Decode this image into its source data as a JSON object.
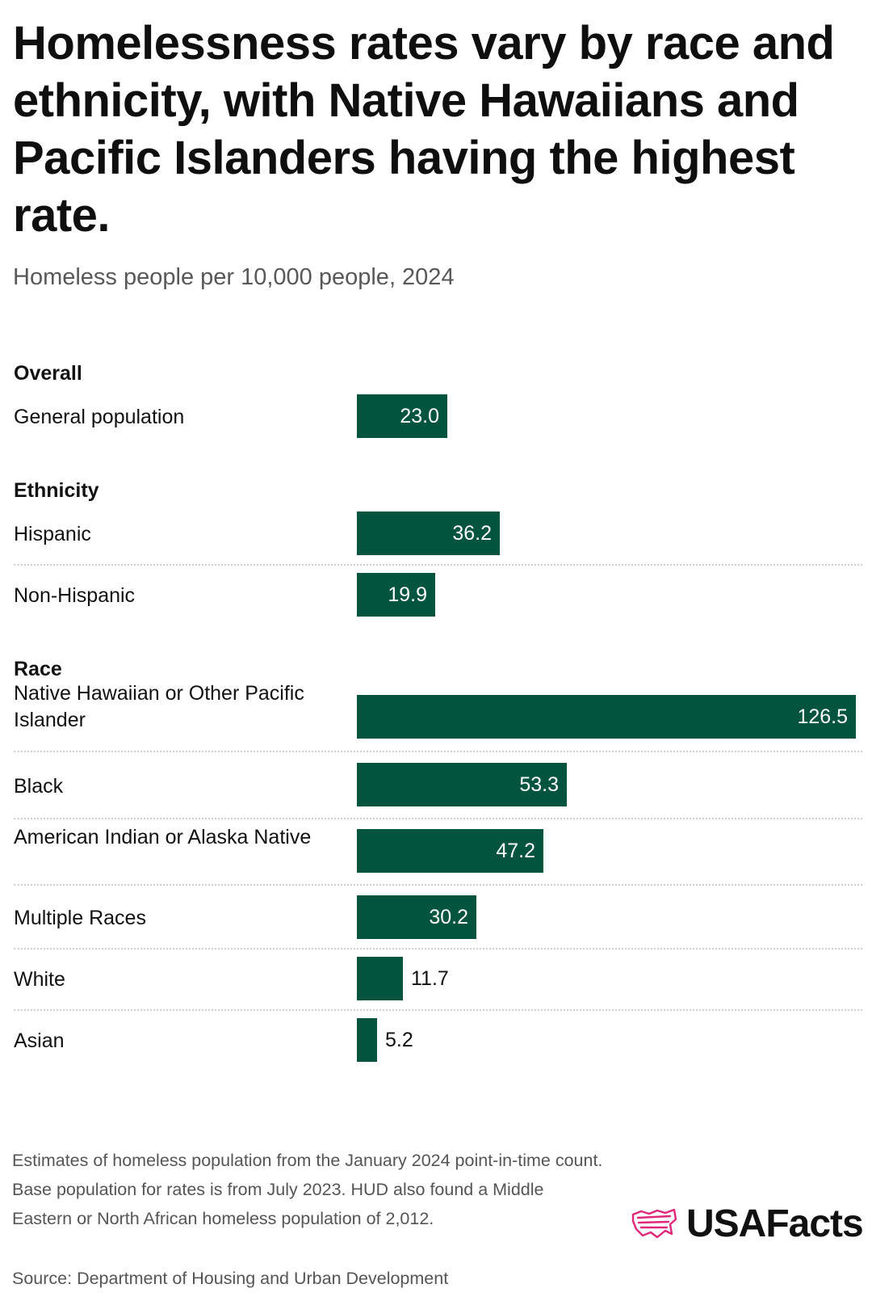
{
  "title": "Homelessness rates vary by race and ethnicity, with Native Hawaiians and Pacific Islanders having the highest rate.",
  "subtitle": "Homeless people per 10,000 people, 2024",
  "chart_data": {
    "type": "bar",
    "orientation": "horizontal",
    "title": "Homelessness rates vary by race and ethnicity, with Native Hawaiians and Pacific Islanders having the highest rate.",
    "subtitle": "Homeless people per 10,000 people, 2024",
    "bar_color": "#02543f",
    "xlim": [
      0,
      126.5
    ],
    "groups": [
      {
        "name": "Overall",
        "rows": [
          {
            "label": "General population",
            "value": 23.0,
            "display": "23.0"
          }
        ]
      },
      {
        "name": "Ethnicity",
        "rows": [
          {
            "label": "Hispanic",
            "value": 36.2,
            "display": "36.2"
          },
          {
            "label": "Non-Hispanic",
            "value": 19.9,
            "display": "19.9"
          }
        ]
      },
      {
        "name": "Race",
        "rows": [
          {
            "label": "Native Hawaiian or Other Pacific Islander",
            "value": 126.5,
            "display": "126.5"
          },
          {
            "label": "Black",
            "value": 53.3,
            "display": "53.3"
          },
          {
            "label": "American Indian or Alaska Native",
            "value": 47.2,
            "display": "47.2"
          },
          {
            "label": "Multiple Races",
            "value": 30.2,
            "display": "30.2"
          },
          {
            "label": "White",
            "value": 11.7,
            "display": "11.7"
          },
          {
            "label": "Asian",
            "value": 5.2,
            "display": "5.2"
          }
        ]
      }
    ]
  },
  "footnote": "Estimates of homeless population from the January 2024 point-in-time count. Base population for rates is from July 2023. HUD also found a Middle Eastern or North African homeless population of 2,012.",
  "source": "Source: Department of Housing and Urban Development",
  "logo": {
    "text": "USAFacts",
    "icon": "usa-flag-icon",
    "accent": "#e0287a"
  }
}
